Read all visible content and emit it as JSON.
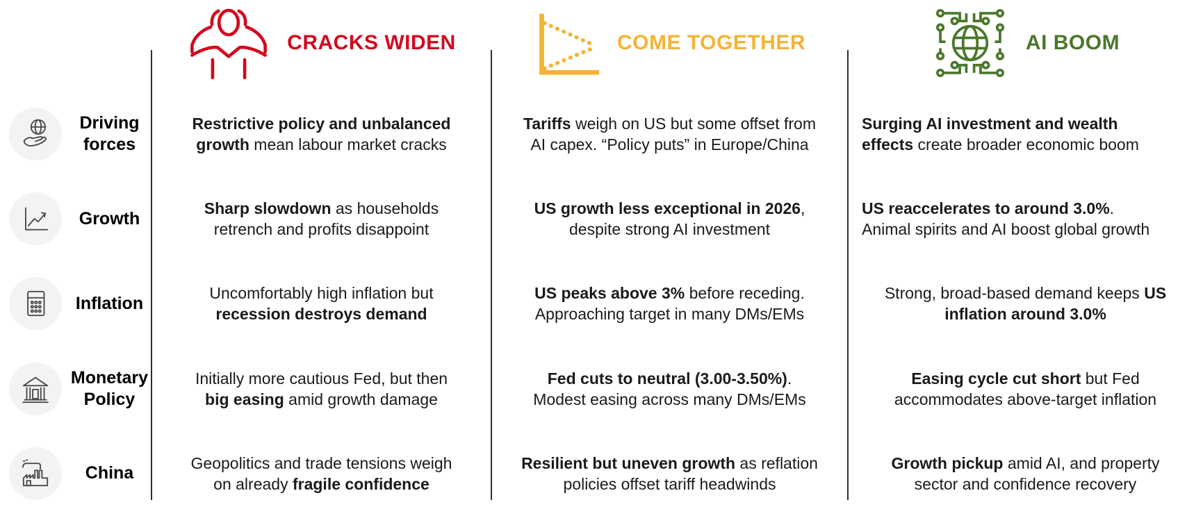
{
  "colors": {
    "cracks_red": "#D2091E",
    "together_yellow": "#F5B335",
    "ai_green": "#4A7729",
    "divider": "#2E2E2E",
    "row_icon_bg": "#F3F3F3",
    "row_icon_stroke": "#4A4A4A",
    "body_text": "#1A1A1A"
  },
  "rows": [
    {
      "label": "Driving\nforces",
      "icon": "globe-in-hand-icon"
    },
    {
      "label": "Growth",
      "icon": "rising-line-chart-icon"
    },
    {
      "label": "Inflation",
      "icon": "calculator-icon"
    },
    {
      "label": "Monetary\nPolicy",
      "icon": "bank-building-icon"
    },
    {
      "label": "China",
      "icon": "factory-icon"
    }
  ],
  "scenarios": [
    {
      "id": "cracks-widen",
      "title": "CRACKS WIDEN",
      "color": "#D2091E",
      "icon": "stressed-person-icon",
      "cells": [
        [
          [
            {
              "t": "Restrictive policy and unbalanced",
              "b": true
            }
          ],
          [
            {
              "t": "growth",
              "b": true
            },
            {
              "t": " mean labour market cracks",
              "b": false
            }
          ]
        ],
        [
          [
            {
              "t": "Sharp slowdown",
              "b": true
            },
            {
              "t": " as households",
              "b": false
            }
          ],
          [
            {
              "t": "retrench and profits disappoint",
              "b": false
            }
          ]
        ],
        [
          [
            {
              "t": "Uncomfortably high inflation but",
              "b": false
            }
          ],
          [
            {
              "t": "recession destroys demand",
              "b": true
            }
          ]
        ],
        [
          [
            {
              "t": "Initially more cautious Fed, but then",
              "b": false
            }
          ],
          [
            {
              "t": "big easing",
              "b": true
            },
            {
              "t": " amid growth damage",
              "b": false
            }
          ]
        ],
        [
          [
            {
              "t": "Geopolitics and trade tensions weigh",
              "b": false
            }
          ],
          [
            {
              "t": "on already ",
              "b": false
            },
            {
              "t": "fragile confidence",
              "b": true
            }
          ]
        ]
      ]
    },
    {
      "id": "come-together",
      "title": "COME TOGETHER",
      "color": "#F5B335",
      "icon": "converging-dotted-lines-chart-icon",
      "cells": [
        [
          [
            {
              "t": "Tariffs",
              "b": true
            },
            {
              "t": " weigh on US but some offset from",
              "b": false
            }
          ],
          [
            {
              "t": "AI capex. “Policy puts” in Europe/China",
              "b": false
            }
          ]
        ],
        [
          [
            {
              "t": "US growth less exceptional in 2026",
              "b": true
            },
            {
              "t": ",",
              "b": false
            }
          ],
          [
            {
              "t": "despite strong AI investment",
              "b": false
            }
          ]
        ],
        [
          [
            {
              "t": "US peaks above 3%",
              "b": true
            },
            {
              "t": " before receding.",
              "b": false
            }
          ],
          [
            {
              "t": "Approaching target in many DMs/EMs",
              "b": false
            }
          ]
        ],
        [
          [
            {
              "t": "Fed cuts to neutral (3.00-3.50%)",
              "b": true
            },
            {
              "t": ".",
              "b": false
            }
          ],
          [
            {
              "t": "Modest easing across many DMs/EMs",
              "b": false
            }
          ]
        ],
        [
          [
            {
              "t": "Resilient but uneven growth",
              "b": true
            },
            {
              "t": " as reflation",
              "b": false
            }
          ],
          [
            {
              "t": "policies offset tariff headwinds",
              "b": false
            }
          ]
        ]
      ]
    },
    {
      "id": "ai-boom",
      "title": "AI BOOM",
      "color": "#4A7729",
      "icon": "ai-globe-circuit-icon",
      "cells": [
        [
          [
            {
              "t": "Surging AI investment and wealth",
              "b": true
            }
          ],
          [
            {
              "t": "effects",
              "b": true
            },
            {
              "t": " create broader economic boom",
              "b": false
            }
          ]
        ],
        [
          [
            {
              "t": "US reaccelerates to around 3.0%",
              "b": true
            },
            {
              "t": ".",
              "b": false
            }
          ],
          [
            {
              "t": "Animal spirits and AI boost global growth",
              "b": false
            }
          ]
        ],
        [
          [
            {
              "t": "Strong, broad-based demand keeps ",
              "b": false
            },
            {
              "t": "US",
              "b": true
            }
          ],
          [
            {
              "t": "inflation around 3.0%",
              "b": true
            }
          ]
        ],
        [
          [
            {
              "t": "Easing cycle cut short",
              "b": true
            },
            {
              "t": " but Fed",
              "b": false
            }
          ],
          [
            {
              "t": "accommodates above-target inflation",
              "b": false
            }
          ]
        ],
        [
          [
            {
              "t": "Growth pickup",
              "b": true
            },
            {
              "t": " amid AI, and property",
              "b": false
            }
          ],
          [
            {
              "t": "sector and confidence recovery",
              "b": false
            }
          ]
        ]
      ]
    }
  ]
}
